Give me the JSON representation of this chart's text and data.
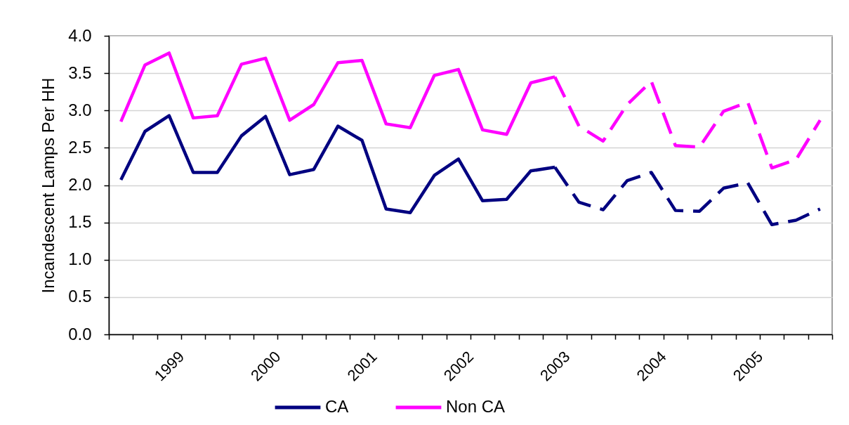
{
  "chart_data": {
    "type": "line",
    "ylabel": "Incandescent Lamps Per HH",
    "categories": [
      null,
      null,
      "1999",
      null,
      null,
      null,
      "2000",
      null,
      null,
      null,
      "2001",
      null,
      null,
      null,
      "2002",
      null,
      null,
      null,
      "2003",
      null,
      null,
      null,
      "2004",
      null,
      null,
      null,
      "2005",
      null,
      null,
      null
    ],
    "series": [
      {
        "name": "CA",
        "color": "#000080",
        "line_style": "solid",
        "values": [
          2.07,
          2.72,
          2.93,
          2.17,
          2.17,
          2.66,
          2.92,
          2.14,
          2.21,
          2.79,
          2.6,
          1.68,
          1.63,
          2.13,
          2.35,
          1.79,
          1.81,
          2.19,
          2.24,
          null,
          null,
          null,
          null,
          null,
          null,
          null,
          null,
          null,
          null,
          null
        ]
      },
      {
        "color": "#000080",
        "line_style": "dashed",
        "values": [
          null,
          null,
          null,
          null,
          null,
          null,
          null,
          null,
          null,
          null,
          null,
          null,
          null,
          null,
          null,
          null,
          null,
          null,
          2.24,
          1.77,
          1.67,
          2.06,
          2.17,
          1.66,
          1.65,
          1.96,
          2.03,
          1.47,
          1.53,
          1.68
        ]
      },
      {
        "name": "Non CA",
        "color": "#ff00ff",
        "line_style": "solid",
        "values": [
          2.85,
          3.61,
          3.77,
          2.9,
          2.93,
          3.62,
          3.7,
          2.87,
          3.08,
          3.64,
          3.67,
          2.82,
          2.77,
          3.47,
          3.55,
          2.74,
          2.68,
          3.37,
          3.45,
          null,
          null,
          null,
          null,
          null,
          null,
          null,
          null,
          null,
          null,
          null
        ]
      },
      {
        "color": "#ff00ff",
        "line_style": "dashed",
        "values": [
          null,
          null,
          null,
          null,
          null,
          null,
          null,
          null,
          null,
          null,
          null,
          null,
          null,
          null,
          null,
          null,
          null,
          null,
          3.45,
          2.79,
          2.59,
          3.08,
          3.39,
          2.53,
          2.51,
          2.99,
          3.11,
          2.23,
          2.34,
          2.87
        ]
      }
    ],
    "ylim": [
      0,
      4
    ],
    "yticks": [
      {
        "value": 0,
        "label": "0.0"
      },
      0.5,
      {
        "value": 1,
        "label": "1.0"
      },
      1.5,
      {
        "value": 2,
        "label": "2.0"
      },
      2.5,
      {
        "value": 3,
        "label": "3.0"
      },
      3.5,
      {
        "value": 4,
        "label": "4.0"
      }
    ],
    "grid": "y",
    "legend": "bottom"
  }
}
